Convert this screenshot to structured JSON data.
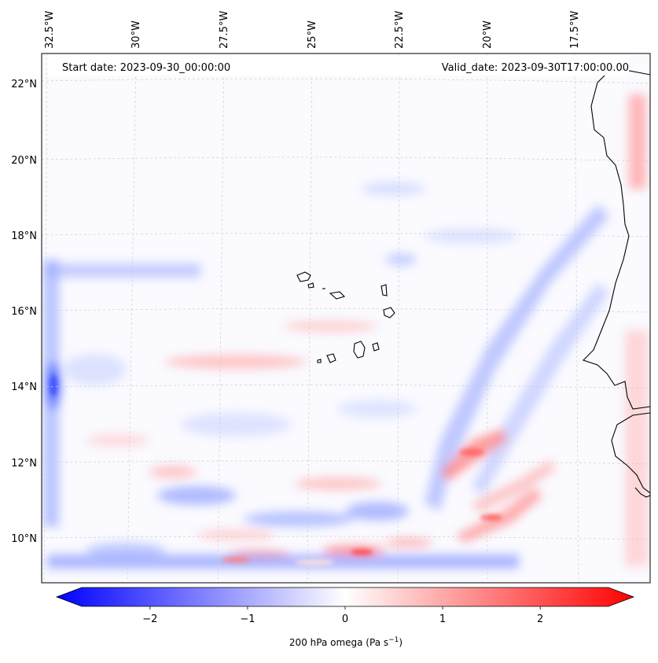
{
  "header": {
    "start_date": "Start date: 2023-09-30_00:00:00",
    "valid_date": "Valid_date: 2023-09-30T17:00:00.00"
  },
  "axes": {
    "lon_labels": [
      "32.5°W",
      "30°W",
      "27.5°W",
      "25°W",
      "22.5°W",
      "20°W",
      "17.5°W"
    ],
    "lat_labels": [
      "22°N",
      "20°N",
      "18°N",
      "16°N",
      "14°N",
      "12°N",
      "10°N"
    ]
  },
  "colorbar": {
    "label_prefix": "200 hPa omega (Pa s",
    "label_exp": "−1",
    "label_suffix": ")",
    "ticks": [
      "−2",
      "−1",
      "0",
      "1",
      "2"
    ],
    "range": [
      -2.7,
      2.7
    ],
    "colors": {
      "negative": "#0000ff",
      "zero": "#ffffff",
      "positive": "#ff0000"
    }
  }
}
